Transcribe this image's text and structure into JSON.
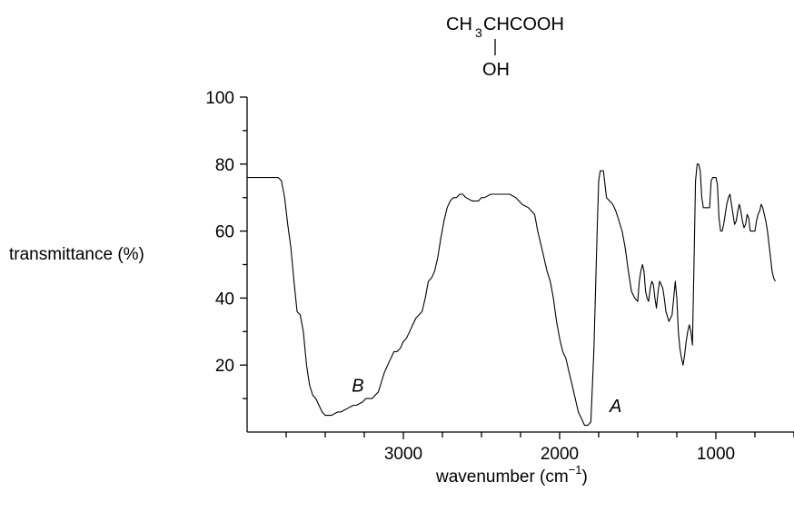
{
  "chart_data": {
    "type": "line",
    "title": "",
    "structure": {
      "top_left": "CH",
      "top_sub": "3",
      "top_right": "CHCOOH",
      "bottom": "OH"
    },
    "xlabel": {
      "text": "wavenumber (cm",
      "superscript": "−1",
      "close": ")"
    },
    "ylabel": "transmittance (%)",
    "xlim": [
      4000,
      500
    ],
    "ylim": [
      0,
      100
    ],
    "x_ticks": [
      {
        "value": 3000,
        "label": "3000"
      },
      {
        "value": 2000,
        "label": "2000"
      },
      {
        "value": 1000,
        "label": "1000"
      }
    ],
    "x_minor_ticks": [
      3750,
      3500,
      3250,
      2750,
      2500,
      2250,
      1750,
      1500,
      1250,
      750,
      500
    ],
    "y_ticks": [
      {
        "value": 20,
        "label": "20"
      },
      {
        "value": 40,
        "label": "40"
      },
      {
        "value": 60,
        "label": "60"
      },
      {
        "value": 80,
        "label": "80"
      },
      {
        "value": 100,
        "label": "100"
      }
    ],
    "y_minor_ticks": [
      10,
      30,
      50,
      70,
      90
    ],
    "annotations": [
      {
        "text": "B",
        "x": 3330,
        "y": 12
      },
      {
        "text": "A",
        "x": 1680,
        "y": 6
      }
    ],
    "series": [
      {
        "x": [
          4000,
          3900,
          3800,
          3780,
          3760,
          3740,
          3720,
          3700,
          3680,
          3660,
          3640,
          3620,
          3600,
          3580,
          3560,
          3540,
          3520,
          3500,
          3480,
          3460,
          3440,
          3420,
          3400,
          3380,
          3360,
          3340,
          3320,
          3300,
          3280,
          3260,
          3240,
          3220,
          3200,
          3180,
          3160,
          3140,
          3120,
          3100,
          3080,
          3060,
          3040,
          3020,
          3000,
          2980,
          2960,
          2940,
          2920,
          2900,
          2880,
          2860,
          2840,
          2820,
          2800,
          2780,
          2760,
          2740,
          2720,
          2700,
          2680,
          2660,
          2640,
          2620,
          2600,
          2560,
          2520,
          2500,
          2480,
          2440,
          2400,
          2360,
          2340,
          2320,
          2280,
          2240,
          2200,
          2180,
          2160,
          2140,
          2120,
          2100,
          2080,
          2060,
          2040,
          2020,
          2000,
          1980,
          1960,
          1940,
          1920,
          1900,
          1880,
          1860,
          1840,
          1820,
          1800,
          1780,
          1760,
          1750,
          1740,
          1730,
          1720,
          1710,
          1700,
          1680,
          1660,
          1640,
          1620,
          1600,
          1580,
          1560,
          1540,
          1520,
          1500,
          1490,
          1480,
          1470,
          1460,
          1450,
          1440,
          1430,
          1420,
          1410,
          1400,
          1390,
          1380,
          1370,
          1360,
          1350,
          1340,
          1330,
          1320,
          1300,
          1280,
          1260,
          1250,
          1240,
          1230,
          1220,
          1210,
          1200,
          1190,
          1180,
          1170,
          1160,
          1150,
          1140,
          1130,
          1120,
          1110,
          1100,
          1090,
          1080,
          1070,
          1060,
          1050,
          1040,
          1030,
          1020,
          1010,
          1000,
          990,
          980,
          970,
          960,
          950,
          940,
          930,
          920,
          910,
          900,
          890,
          880,
          870,
          860,
          850,
          840,
          830,
          820,
          810,
          800,
          790,
          780,
          770,
          760,
          750,
          740,
          730,
          720,
          710,
          700,
          690,
          680,
          670,
          660,
          650,
          640,
          630,
          620
        ],
        "y": [
          76,
          76,
          76,
          75,
          70,
          62,
          55,
          45,
          36,
          35,
          30,
          20,
          14,
          11,
          10,
          8,
          6,
          5,
          5,
          5,
          5.5,
          6,
          6,
          6.5,
          7,
          7.5,
          8,
          8,
          8.5,
          9,
          10,
          10,
          10,
          11,
          12,
          15,
          18,
          20,
          22,
          24,
          24,
          25,
          27,
          28,
          30,
          32,
          34,
          35,
          36,
          40,
          45,
          46,
          48,
          52,
          58,
          63,
          67,
          69,
          70,
          70,
          71,
          71,
          70,
          69,
          69,
          70,
          70,
          71,
          71,
          71,
          71,
          71,
          70,
          68,
          67,
          66,
          65,
          60,
          56,
          52,
          48,
          45,
          40,
          33,
          28,
          24,
          22,
          18,
          14,
          10,
          6,
          4,
          2,
          2,
          3,
          25,
          60,
          75,
          78,
          78,
          78,
          74,
          70,
          69,
          68,
          66,
          63,
          60,
          55,
          48,
          42,
          40,
          39,
          45,
          48,
          50,
          48,
          42,
          40,
          39,
          43,
          45,
          44,
          40,
          37,
          42,
          45,
          44,
          43,
          40,
          36,
          33,
          35,
          45,
          40,
          30,
          25,
          22,
          20,
          23,
          27,
          30,
          32,
          30,
          26,
          50,
          75,
          80,
          80,
          78,
          70,
          67,
          67,
          67,
          67,
          67,
          75,
          76,
          76,
          76,
          74,
          64,
          60,
          60,
          62,
          65,
          68,
          70,
          71,
          68,
          65,
          62,
          63,
          66,
          68,
          66,
          63,
          61,
          62,
          65,
          64,
          60,
          60,
          60,
          60,
          63,
          65,
          66,
          68,
          67,
          65,
          63,
          60,
          56,
          52,
          48,
          46,
          45
        ]
      }
    ]
  }
}
